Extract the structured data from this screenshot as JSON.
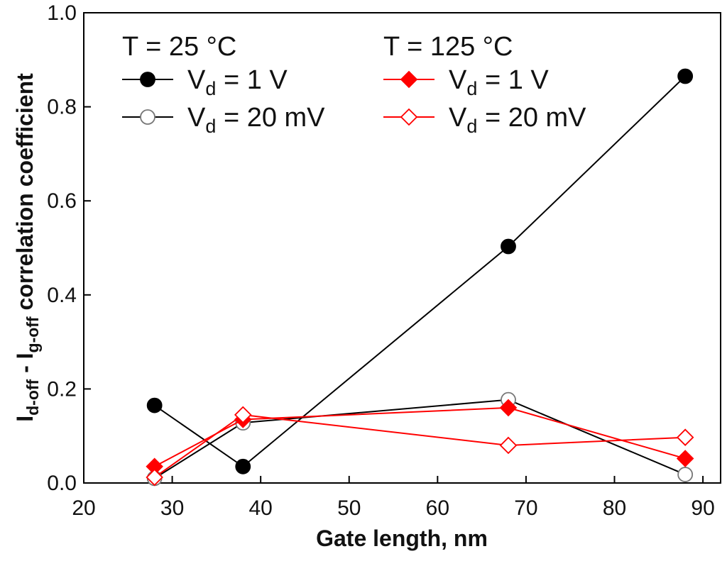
{
  "chart_data": {
    "type": "line",
    "title": "",
    "xlabel": "Gate length, nm",
    "ylabel": {
      "i1": "I",
      "i1_sub": "d-off",
      "sep": " - I",
      "i2_sub": "g-off",
      "rest": " correlation coefficient"
    },
    "xlim": [
      20,
      92
    ],
    "ylim": [
      0,
      1.0
    ],
    "xticks": [
      20,
      30,
      40,
      50,
      60,
      70,
      80,
      90
    ],
    "yticks": [
      0.0,
      0.2,
      0.4,
      0.6,
      0.8,
      1.0
    ],
    "ytick_labels": [
      "0.0",
      "0.2",
      "0.4",
      "0.6",
      "0.8",
      "1.0"
    ],
    "grid": false,
    "legend_groups": [
      {
        "header": "T = 25 °C",
        "series": [
          0,
          1
        ]
      },
      {
        "header": "T = 125 °C",
        "series": [
          2,
          3
        ]
      }
    ],
    "series": [
      {
        "name": "Vd = 1 V",
        "label_main": "V",
        "label_sub": "d",
        "label_rest": " = 1 V",
        "temperature": "T = 25 °C",
        "color": "#000000",
        "marker": "circle",
        "filled": true,
        "x": [
          28,
          38,
          68,
          88
        ],
        "y": [
          0.165,
          0.035,
          0.503,
          0.865
        ]
      },
      {
        "name": "Vd = 20 mV",
        "label_main": "V",
        "label_sub": "d",
        "label_rest": " = 20 mV",
        "temperature": "T = 25 °C",
        "color": "#000000",
        "marker": "circle",
        "filled": false,
        "x": [
          28,
          38,
          68,
          88
        ],
        "y": [
          0.01,
          0.128,
          0.177,
          0.018
        ]
      },
      {
        "name": "Vd = 1 V",
        "label_main": "V",
        "label_sub": "d",
        "label_rest": " = 1 V",
        "temperature": "T = 125 °C",
        "color": "#ff0000",
        "marker": "diamond",
        "filled": true,
        "x": [
          28,
          38,
          68,
          88
        ],
        "y": [
          0.035,
          0.135,
          0.16,
          0.052
        ]
      },
      {
        "name": "Vd = 20 mV",
        "label_main": "V",
        "label_sub": "d",
        "label_rest": " = 20 mV",
        "temperature": "T = 125 °C",
        "color": "#ff0000",
        "marker": "diamond",
        "filled": false,
        "x": [
          28,
          38,
          68,
          88
        ],
        "y": [
          0.012,
          0.145,
          0.08,
          0.097
        ]
      }
    ]
  }
}
